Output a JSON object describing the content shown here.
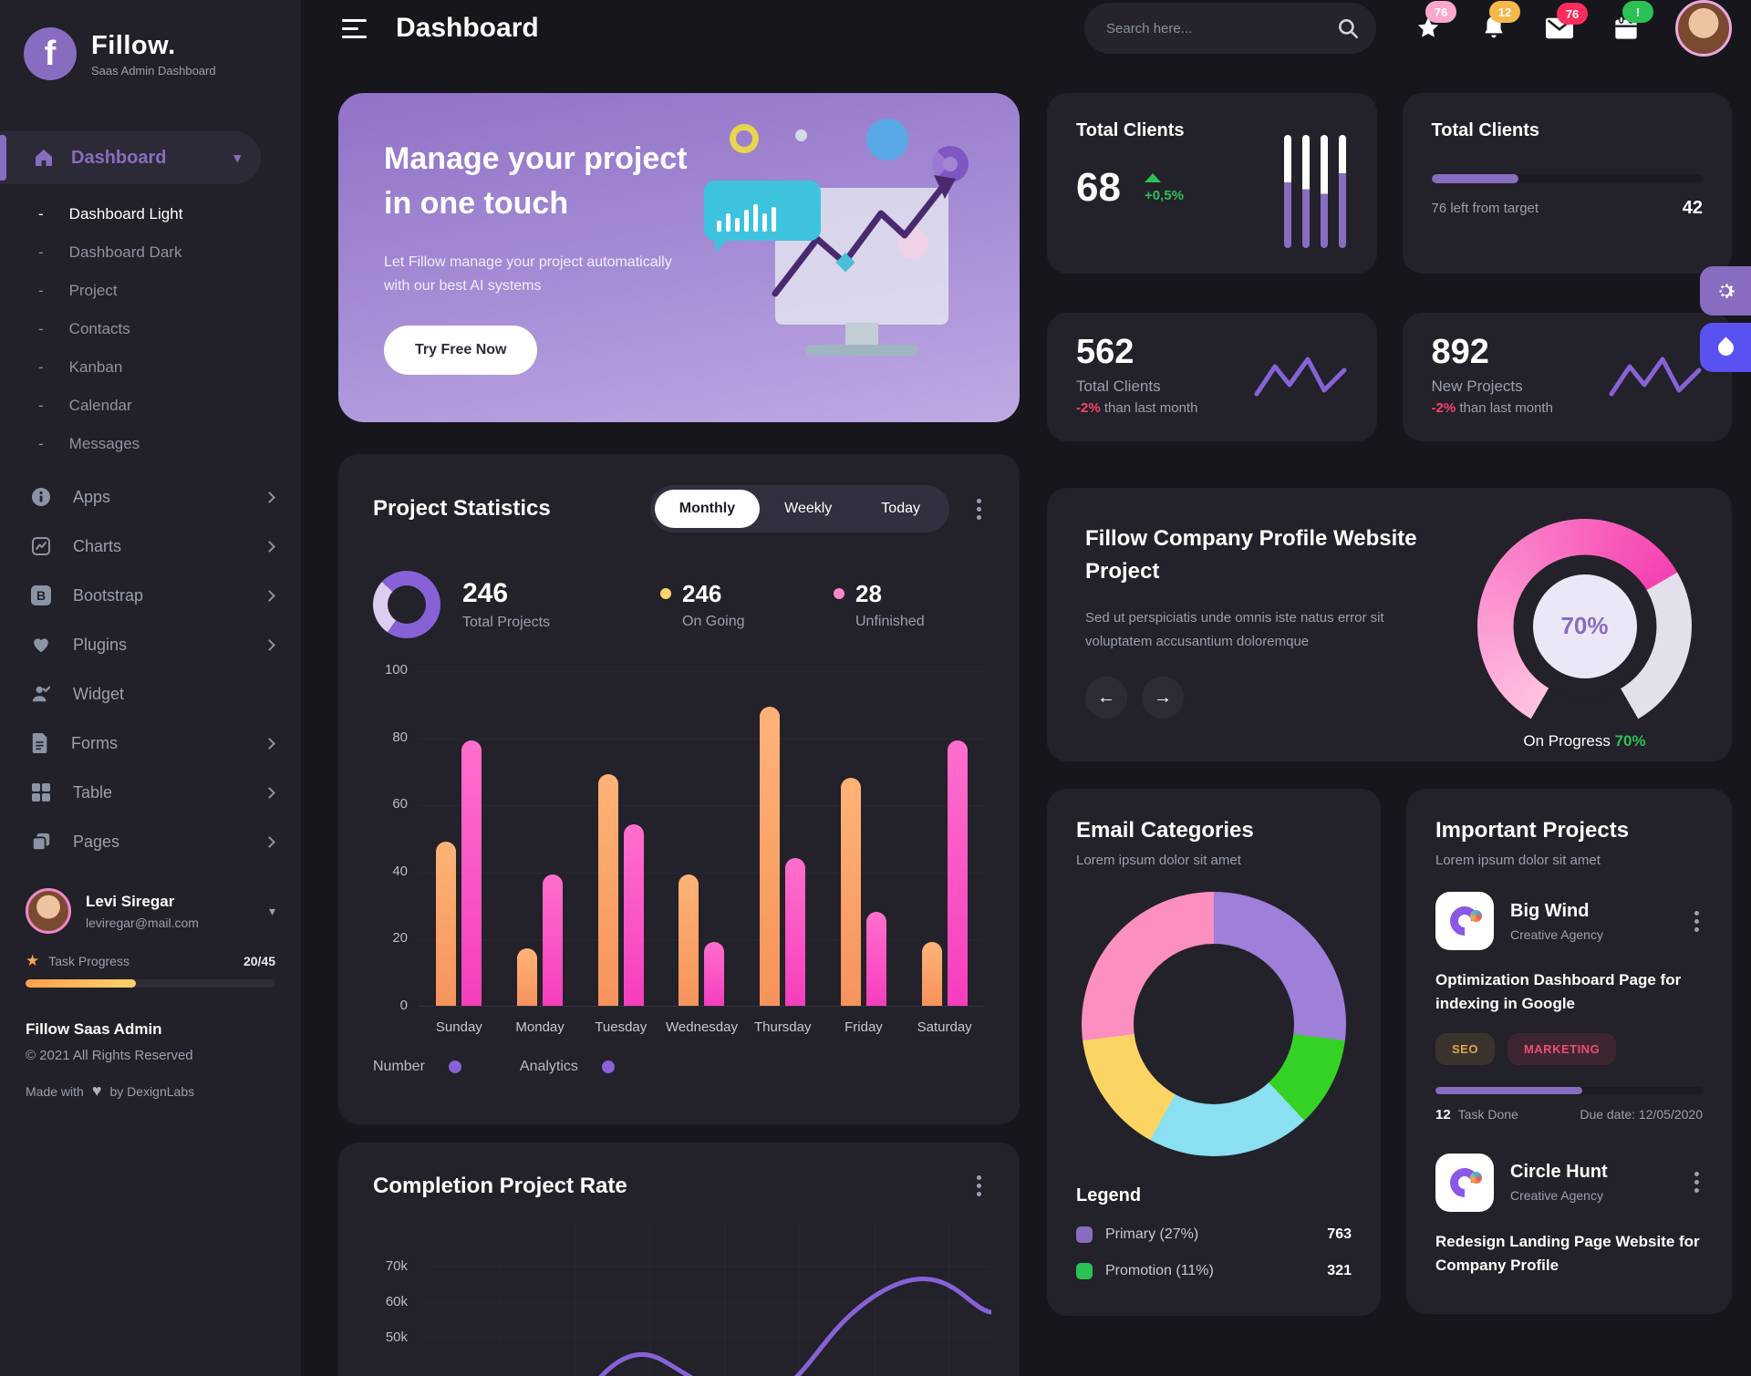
{
  "brand": {
    "logo_letter": "f",
    "name": "Fillow.",
    "tagline": "Saas Admin Dashboard"
  },
  "sidebar": {
    "active_label": "Dashboard",
    "submenu": [
      "Dashboard Light",
      "Dashboard Dark",
      "Project",
      "Contacts",
      "Kanban",
      "Calendar",
      "Messages"
    ],
    "menu": [
      {
        "label": "Apps",
        "icon": "info-icon"
      },
      {
        "label": "Charts",
        "icon": "chart-icon"
      },
      {
        "label": "Bootstrap",
        "icon": "bootstrap-icon"
      },
      {
        "label": "Plugins",
        "icon": "heart-icon"
      },
      {
        "label": "Widget",
        "icon": "user-check-icon"
      },
      {
        "label": "Forms",
        "icon": "file-icon"
      },
      {
        "label": "Table",
        "icon": "table-icon"
      },
      {
        "label": "Pages",
        "icon": "pages-icon"
      }
    ],
    "user": {
      "name": "Levi Siregar",
      "email": "leviregar@mail.com",
      "task_progress_label": "Task Progress",
      "task_progress_value": "20/45",
      "task_progress_pct": 44
    },
    "footer": {
      "title": "Fillow Saas Admin",
      "copyright": "© 2021 All Rights Reserved",
      "made_with": "Made with",
      "made_by": "by DexignLabs"
    }
  },
  "header": {
    "title": "Dashboard",
    "search_placeholder": "Search here...",
    "badges": {
      "star": "76",
      "bell": "12",
      "mail": "76",
      "calendar": "!"
    }
  },
  "banner": {
    "title_line1": "Manage your project",
    "title_line2": "in one touch",
    "body_line1": "Let Fillow manage your project automatically",
    "body_line2": "with our best AI systems",
    "cta": "Try Free Now"
  },
  "stats": {
    "clients_growth": {
      "title": "Total Clients",
      "value": "68",
      "delta": "+0,5%",
      "bars_purple_pct": [
        58,
        52,
        48,
        66
      ]
    },
    "clients_target": {
      "title": "Total Clients",
      "progress_pct": 32,
      "left_label": "76 left from target",
      "right_value": "42"
    },
    "clients_month": {
      "value": "562",
      "label": "Total Clients",
      "delta": "-2%",
      "delta_suffix": "than last month"
    },
    "projects_month": {
      "value": "892",
      "label": "New Projects",
      "delta": "-2%",
      "delta_suffix": "than last month"
    }
  },
  "project_statistics": {
    "title": "Project Statistics",
    "tabs": [
      "Monthly",
      "Weekly",
      "Today"
    ],
    "active_tab": "Monthly",
    "summary": {
      "total": {
        "value": "246",
        "label": "Total Projects",
        "donut_purple_pct": 73
      },
      "ongoing": {
        "value": "246",
        "label": "On Going",
        "dot_color": "#FFD36B"
      },
      "unfinished": {
        "value": "28",
        "label": "Unfinished",
        "dot_color": "#FF86C9"
      }
    },
    "legend": [
      "Number",
      "Analytics"
    ],
    "chart_data": {
      "type": "bar",
      "categories": [
        "Sunday",
        "Monday",
        "Tuesday",
        "Wednesday",
        "Thursday",
        "Friday",
        "Saturday"
      ],
      "series": [
        {
          "name": "Number",
          "color": "#F99B63",
          "values": [
            49,
            17,
            69,
            39,
            89,
            68,
            19
          ]
        },
        {
          "name": "Analytics",
          "color": "#F64CC1",
          "values": [
            79,
            39,
            54,
            19,
            44,
            28,
            79
          ]
        }
      ],
      "ylim": [
        0,
        100
      ],
      "yticks": [
        0,
        20,
        40,
        60,
        80,
        100
      ],
      "grid": true,
      "legend_position": "bottom"
    }
  },
  "profile_project": {
    "title": "Fillow Company Profile Website Project",
    "description": "Sed ut perspiciatis unde omnis iste natus error sit voluptatem accusantium doloremque",
    "progress_label": "On Progress",
    "progress_value": "70%",
    "chart_data": {
      "type": "gauge",
      "value_pct": 70,
      "label": "70%",
      "arc_degrees": 300,
      "color": "#F541B1",
      "track_color": "#E3DFEB"
    }
  },
  "email_categories": {
    "title": "Email Categories",
    "subtitle": "Lorem ipsum dolor sit amet",
    "legend_title": "Legend",
    "legend": [
      {
        "label": "Primary (27%)",
        "value": "763",
        "color": "#886CC0"
      },
      {
        "label": "Promotion (11%)",
        "value": "321",
        "color": "#2BC155"
      }
    ],
    "chart_data": {
      "type": "pie",
      "segments": [
        {
          "label": "Primary",
          "pct": 27,
          "color": "#9E7FD9"
        },
        {
          "label": "Promotion",
          "pct": 11,
          "color": "#35D226"
        },
        {
          "label": "",
          "pct": 20,
          "color": "#8ADFF0"
        },
        {
          "label": "",
          "pct": 15,
          "color": "#FBD564"
        },
        {
          "label": "",
          "pct": 27,
          "color": "#FB8FC0"
        }
      ]
    }
  },
  "important_projects": {
    "title": "Important Projects",
    "subtitle": "Lorem ipsum dolor sit amet",
    "items": [
      {
        "name": "Big Wind",
        "type": "Creative Agency",
        "description": "Optimization Dashboard Page for indexing in Google",
        "tags": [
          "SEO",
          "MARKETING"
        ],
        "progress_pct": 55,
        "tasks_done": "12",
        "tasks_label": "Task Done",
        "due": "Due date: 12/05/2020"
      },
      {
        "name": "Circle Hunt",
        "type": "Creative Agency",
        "description": "Redesign Landing Page Website for Company Profile"
      }
    ]
  },
  "completion_rate": {
    "title": "Completion Project Rate",
    "chart_data": {
      "type": "line",
      "yticks_visible": [
        "70k",
        "60k",
        "50k"
      ],
      "line_color": "#8762D7"
    }
  }
}
